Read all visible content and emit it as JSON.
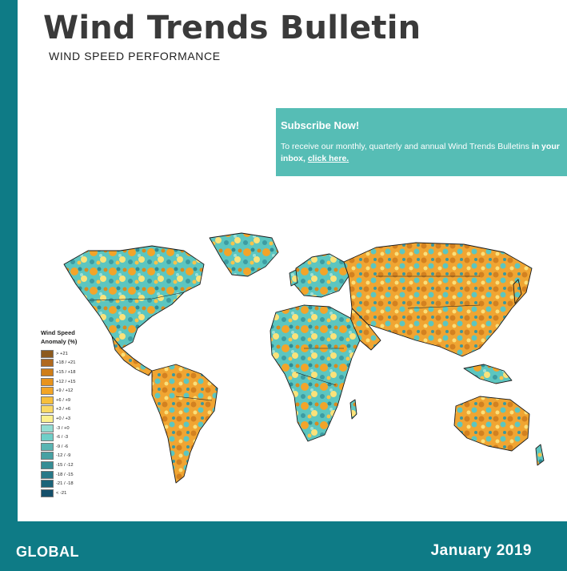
{
  "header": {
    "title": "Wind Trends Bulletin",
    "subtitle": "WIND SPEED PERFORMANCE"
  },
  "subscribe": {
    "heading": "Subscribe Now!",
    "text_before": "To receive our monthly, quarterly and annual Wind Trends Bulletins",
    "text_bold": "in your inbox,",
    "link": "click here."
  },
  "legend": {
    "title_line1": "Wind Speed",
    "title_line2": "Anomaly (%)",
    "items": [
      {
        "label": "> +21",
        "color": "#8c5a1e"
      },
      {
        "label": "+18 / +21",
        "color": "#b0691e"
      },
      {
        "label": "+15 / +18",
        "color": "#cf7e18"
      },
      {
        "label": "+12 / +15",
        "color": "#e8931c"
      },
      {
        "label": "+9 / +12",
        "color": "#f3a526"
      },
      {
        "label": "+6 / +9",
        "color": "#f7bf3c"
      },
      {
        "label": "+3 / +6",
        "color": "#fad966"
      },
      {
        "label": "+0 / +3",
        "color": "#fdf08e"
      },
      {
        "label": "-3 / +0",
        "color": "#93ddd3"
      },
      {
        "label": "-6 / -3",
        "color": "#6fcfc8"
      },
      {
        "label": "-9 / -6",
        "color": "#5ab5b3"
      },
      {
        "label": "-12 / -9",
        "color": "#47a1a3"
      },
      {
        "label": "-15 / -12",
        "color": "#368d95"
      },
      {
        "label": "-18 / -15",
        "color": "#277888"
      },
      {
        "label": "-21 / -18",
        "color": "#1c6479"
      },
      {
        "label": "< -21",
        "color": "#144f6a"
      }
    ]
  },
  "footer": {
    "region": "GLOBAL",
    "date": "January  2019"
  },
  "colors": {
    "brand_teal": "#0e7b86",
    "subscribe_teal": "#56bdb5"
  }
}
